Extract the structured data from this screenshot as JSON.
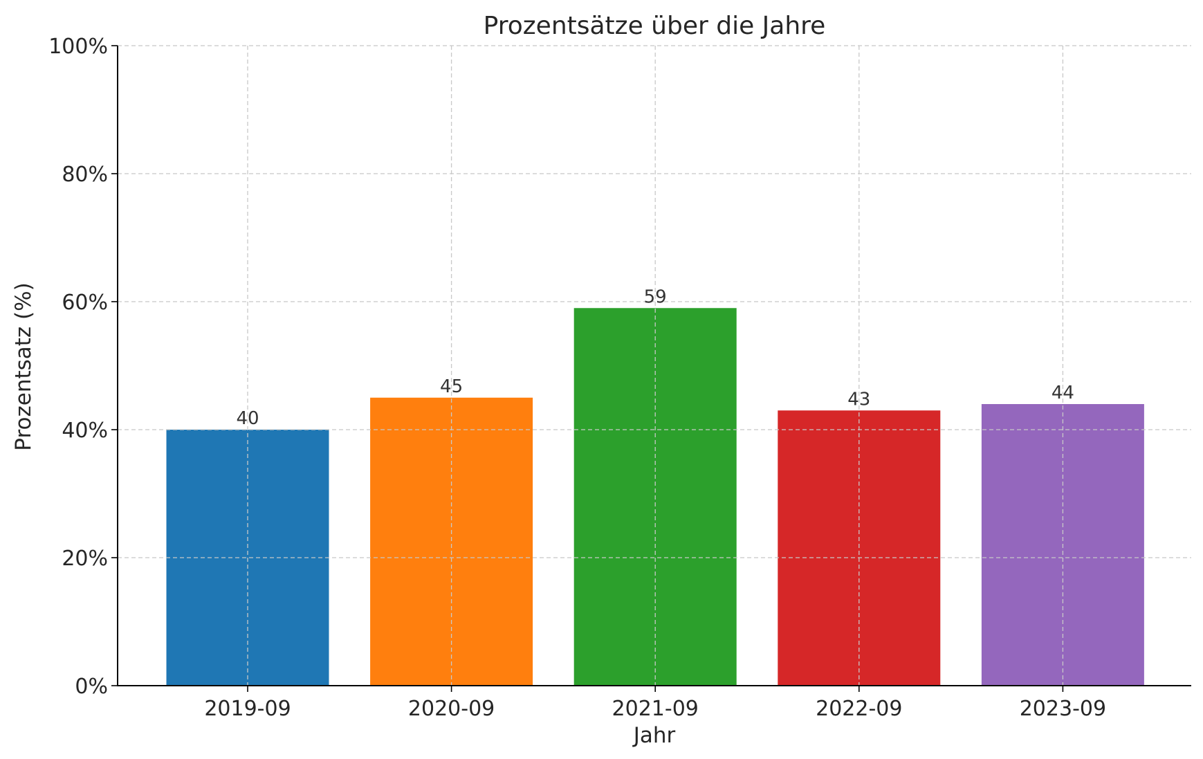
{
  "chart_data": {
    "type": "bar",
    "title": "Prozentsätze über die Jahre",
    "xlabel": "Jahr",
    "ylabel": "Prozentsatz (%)",
    "categories": [
      "2019-09",
      "2020-09",
      "2021-09",
      "2022-09",
      "2023-09"
    ],
    "values": [
      40,
      45,
      59,
      43,
      44
    ],
    "data_labels": [
      "40",
      "45",
      "59",
      "43",
      "44"
    ],
    "colors": [
      "#1f77b4",
      "#ff7f0e",
      "#2ca02c",
      "#d62728",
      "#9467bd"
    ],
    "ylim": [
      0,
      100
    ],
    "y_ticks": [
      0,
      20,
      40,
      60,
      80,
      100
    ],
    "y_tick_labels": [
      "0%",
      "20%",
      "40%",
      "60%",
      "80%",
      "100%"
    ],
    "grid": true,
    "legend": "none"
  }
}
